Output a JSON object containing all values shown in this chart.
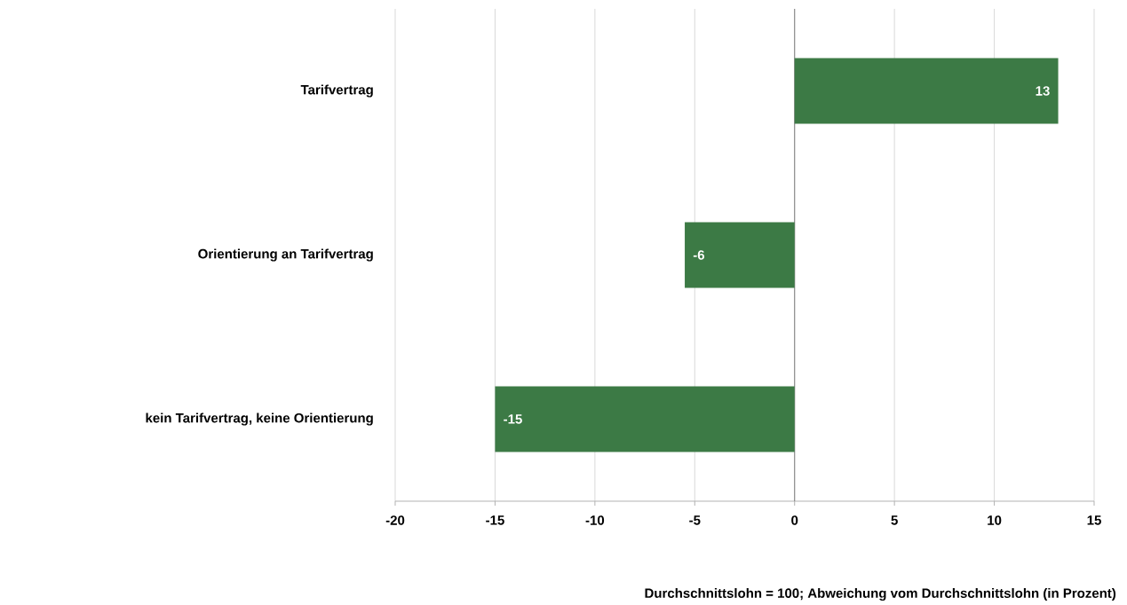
{
  "chart_data": {
    "type": "bar",
    "orientation": "horizontal",
    "xlabel": "Durchschnittslohn = 100; Abweichung vom Durchschnittslohn (in Prozent)",
    "categories": [
      "Tarifvertrag",
      "Orientierung an Tarifvertrag",
      "kein Tarifvertrag, keine Orientierung"
    ],
    "values": [
      13.2,
      -5.5,
      -15
    ],
    "value_labels": [
      "13",
      "-6",
      "-15"
    ],
    "color": "#3c7a45",
    "xlim": [
      -20,
      15
    ],
    "xticks": [
      -20,
      -15,
      -10,
      -5,
      0,
      5,
      10,
      15
    ],
    "grid": "x"
  }
}
